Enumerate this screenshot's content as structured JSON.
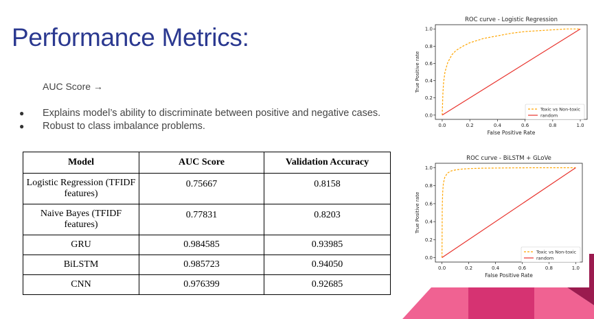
{
  "slide": {
    "title": "Performance Metrics:",
    "auc_line": "AUC Score →",
    "bullets": [
      "Explains model’s ability to discriminate between positive and negative cases.",
      "Robust to class imbalance problems."
    ]
  },
  "table": {
    "headers": [
      "Model",
      "AUC Score",
      "Validation Accuracy"
    ],
    "rows": [
      {
        "model": "Logistic Regression (TFIDF features)",
        "auc": "0.75667",
        "acc": "0.8158"
      },
      {
        "model": "Naive Bayes (TFIDF features)",
        "auc": "0.77831",
        "acc": "0.8203"
      },
      {
        "model": "GRU",
        "auc": "0.984585",
        "acc": "0.93985"
      },
      {
        "model": "BiLSTM",
        "auc": "0.985723",
        "acc": "0.94050"
      },
      {
        "model": "CNN",
        "auc": "0.976399",
        "acc": "0.92685"
      }
    ]
  },
  "colors": {
    "title": "#2b3990",
    "curve": "#ffa500",
    "random": "#e8312b",
    "deco_pink": "#f06292",
    "deco_mid": "#d63372",
    "deco_dark": "#9b1b4f"
  },
  "chart_data": [
    {
      "type": "line",
      "title": "ROC curve - Logistic Regression",
      "xlabel": "False Positive Rate",
      "ylabel": "True Positive rate",
      "xlim": [
        0,
        1
      ],
      "ylim": [
        0,
        1
      ],
      "xticks": [
        "0.0",
        "0.2",
        "0.4",
        "0.6",
        "0.8",
        "1.0"
      ],
      "yticks": [
        "0.0",
        "0.2",
        "0.4",
        "0.6",
        "0.8",
        "1.0"
      ],
      "grid": false,
      "legend": "bottom-right",
      "series": [
        {
          "name": "Toxic vs Non-toxic",
          "style": "dashed",
          "x": [
            0,
            0.005,
            0.01,
            0.02,
            0.04,
            0.07,
            0.1,
            0.15,
            0.2,
            0.3,
            0.4,
            0.5,
            0.6,
            0.7,
            0.8,
            0.9,
            1.0
          ],
          "y": [
            0,
            0.25,
            0.38,
            0.5,
            0.61,
            0.7,
            0.75,
            0.8,
            0.84,
            0.89,
            0.92,
            0.95,
            0.97,
            0.98,
            0.99,
            1.0,
            1.0
          ]
        },
        {
          "name": "random",
          "style": "solid",
          "x": [
            0,
            1
          ],
          "y": [
            0,
            1
          ]
        }
      ]
    },
    {
      "type": "line",
      "title": "ROC curve - BiLSTM + GLoVe",
      "xlabel": "False Positive Rate",
      "ylabel": "True Positive rate",
      "xlim": [
        0,
        1
      ],
      "ylim": [
        0,
        1
      ],
      "xticks": [
        "0.0",
        "0.2",
        "0.4",
        "0.6",
        "0.8",
        "1.0"
      ],
      "yticks": [
        "0.0",
        "0.2",
        "0.4",
        "0.6",
        "0.8",
        "1.0"
      ],
      "grid": false,
      "legend": "bottom-right",
      "series": [
        {
          "name": "Toxic vs Non-toxic",
          "style": "dashed",
          "x": [
            0,
            0.002,
            0.005,
            0.01,
            0.02,
            0.04,
            0.07,
            0.1,
            0.15,
            0.2,
            0.3,
            0.5,
            0.7,
            1.0
          ],
          "y": [
            0,
            0.55,
            0.72,
            0.82,
            0.89,
            0.94,
            0.965,
            0.975,
            0.985,
            0.99,
            0.995,
            0.998,
            1.0,
            1.0
          ]
        },
        {
          "name": "random",
          "style": "solid",
          "x": [
            0,
            1
          ],
          "y": [
            0,
            1
          ]
        }
      ]
    }
  ]
}
